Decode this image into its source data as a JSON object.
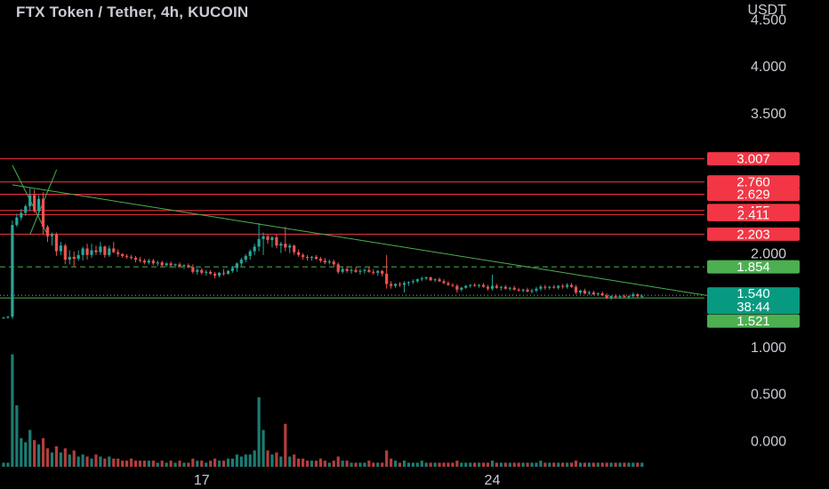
{
  "header": {
    "title": "FTX Token / Tether, 4h, KUCOIN",
    "currency": "USDT"
  },
  "colors": {
    "up": "#26a69a",
    "down": "#ef5350",
    "level_line": "#f23645",
    "trend_line": "#4caf50",
    "badge_red": "#f23645",
    "badge_green": "#4caf50",
    "badge_teal": "#089981",
    "background": "#000000"
  },
  "chart_data": {
    "type": "candlestick",
    "title": "FTX Token / Tether, 4h, KUCOIN",
    "ylabel": "USDT",
    "ylim": [
      -0.2,
      4.6
    ],
    "price_ticks": [
      "4.500",
      "4.000",
      "3.500",
      "2.000",
      "1.000"
    ],
    "volume_ticks": [
      "0.500",
      "0.000"
    ],
    "x_ticks": [
      {
        "label": "17",
        "bar": 45
      },
      {
        "label": "24",
        "bar": 111
      }
    ],
    "levels": [
      {
        "value": 3.007,
        "label": "3.007",
        "kind": "resistance"
      },
      {
        "value": 2.76,
        "label": "2.760",
        "kind": "resistance"
      },
      {
        "value": 2.629,
        "label": "2.629",
        "kind": "resistance"
      },
      {
        "value": 2.455,
        "label": "2.455",
        "kind": "resistance"
      },
      {
        "value": 2.411,
        "label": "2.411",
        "kind": "resistance"
      },
      {
        "value": 2.203,
        "label": "2.203",
        "kind": "resistance"
      }
    ],
    "dashed_level": {
      "value": 1.854,
      "label": "1.854"
    },
    "current_price": {
      "value": 1.54,
      "label": "1.540",
      "countdown": "38:44"
    },
    "last_level": {
      "value": 1.521,
      "label": "1.521"
    },
    "trendlines": [
      {
        "from": {
          "bar": 2,
          "price": 2.73
        },
        "to": {
          "bar": 158,
          "price": 1.54
        }
      },
      {
        "from": {
          "bar": 2,
          "price": 2.94
        },
        "to": {
          "bar": 6,
          "price": 2.2
        }
      },
      {
        "from": {
          "bar": 6,
          "price": 2.2
        },
        "to": {
          "bar": 8,
          "price": 2.9
        }
      }
    ],
    "candles": [
      [
        1.31,
        1.32,
        1.3,
        1.31,
        0.02
      ],
      [
        1.31,
        1.33,
        1.3,
        1.32,
        0.02
      ],
      [
        1.32,
        2.35,
        1.3,
        2.3,
        0.55
      ],
      [
        2.3,
        2.42,
        2.28,
        2.38,
        0.3
      ],
      [
        2.38,
        2.47,
        2.35,
        2.43,
        0.14
      ],
      [
        2.43,
        2.52,
        2.4,
        2.5,
        0.12
      ],
      [
        2.5,
        2.7,
        2.45,
        2.62,
        0.18
      ],
      [
        2.62,
        2.68,
        2.43,
        2.45,
        0.13
      ],
      [
        2.45,
        2.62,
        2.4,
        2.58,
        0.11
      ],
      [
        2.58,
        2.65,
        2.2,
        2.28,
        0.14
      ],
      [
        2.28,
        2.3,
        2.12,
        2.18,
        0.09
      ],
      [
        2.18,
        2.22,
        2.08,
        2.2,
        0.07
      ],
      [
        2.2,
        2.22,
        1.97,
        2.02,
        0.1
      ],
      [
        2.02,
        2.12,
        1.98,
        2.08,
        0.07
      ],
      [
        2.08,
        2.1,
        1.88,
        1.93,
        0.09
      ],
      [
        1.93,
        2.03,
        1.88,
        1.96,
        0.06
      ],
      [
        1.96,
        2.02,
        1.85,
        1.94,
        0.08
      ],
      [
        1.94,
        2.03,
        1.92,
        1.98,
        0.05
      ],
      [
        1.98,
        2.07,
        1.92,
        2.05,
        0.06
      ],
      [
        2.05,
        2.1,
        1.93,
        1.98,
        0.05
      ],
      [
        1.98,
        2.1,
        1.95,
        2.03,
        0.04
      ],
      [
        2.03,
        2.08,
        1.98,
        2.01,
        0.06
      ],
      [
        2.01,
        2.12,
        1.98,
        2.07,
        0.05
      ],
      [
        2.07,
        2.08,
        1.95,
        1.98,
        0.04
      ],
      [
        1.98,
        2.08,
        1.96,
        2.05,
        0.05
      ],
      [
        2.05,
        2.12,
        2.0,
        2.01,
        0.04
      ],
      [
        2.01,
        2.04,
        1.96,
        1.99,
        0.04
      ],
      [
        1.99,
        2.0,
        1.95,
        1.97,
        0.03
      ],
      [
        1.97,
        1.99,
        1.94,
        1.96,
        0.03
      ],
      [
        1.96,
        1.98,
        1.93,
        1.95,
        0.04
      ],
      [
        1.95,
        1.97,
        1.9,
        1.93,
        0.03
      ],
      [
        1.93,
        1.96,
        1.9,
        1.92,
        0.03
      ],
      [
        1.92,
        1.94,
        1.88,
        1.9,
        0.03
      ],
      [
        1.9,
        1.94,
        1.88,
        1.92,
        0.03
      ],
      [
        1.92,
        1.94,
        1.87,
        1.89,
        0.03
      ],
      [
        1.89,
        1.92,
        1.86,
        1.9,
        0.02
      ],
      [
        1.9,
        1.92,
        1.85,
        1.87,
        0.03
      ],
      [
        1.87,
        1.9,
        1.85,
        1.89,
        0.02
      ],
      [
        1.89,
        1.91,
        1.86,
        1.87,
        0.03
      ],
      [
        1.87,
        1.89,
        1.84,
        1.88,
        0.02
      ],
      [
        1.88,
        1.9,
        1.85,
        1.86,
        0.03
      ],
      [
        1.86,
        1.88,
        1.83,
        1.87,
        0.02
      ],
      [
        1.87,
        1.89,
        1.84,
        1.85,
        0.02
      ],
      [
        1.85,
        1.88,
        1.78,
        1.8,
        0.04
      ],
      [
        1.8,
        1.84,
        1.77,
        1.82,
        0.03
      ],
      [
        1.82,
        1.84,
        1.77,
        1.79,
        0.03
      ],
      [
        1.79,
        1.82,
        1.76,
        1.8,
        0.02
      ],
      [
        1.8,
        1.82,
        1.77,
        1.78,
        0.03
      ],
      [
        1.78,
        1.8,
        1.73,
        1.76,
        0.04
      ],
      [
        1.76,
        1.8,
        1.74,
        1.79,
        0.03
      ],
      [
        1.79,
        1.83,
        1.76,
        1.78,
        0.03
      ],
      [
        1.78,
        1.82,
        1.77,
        1.81,
        0.04
      ],
      [
        1.81,
        1.86,
        1.79,
        1.84,
        0.04
      ],
      [
        1.84,
        1.9,
        1.8,
        1.89,
        0.06
      ],
      [
        1.89,
        1.95,
        1.86,
        1.93,
        0.05
      ],
      [
        1.93,
        1.99,
        1.9,
        1.97,
        0.06
      ],
      [
        1.97,
        2.04,
        1.93,
        2.02,
        0.06
      ],
      [
        2.02,
        2.1,
        1.98,
        2.07,
        0.08
      ],
      [
        2.07,
        2.32,
        2.02,
        2.15,
        0.34
      ],
      [
        2.15,
        2.22,
        1.98,
        2.18,
        0.18
      ],
      [
        2.18,
        2.2,
        2.1,
        2.14,
        0.08
      ],
      [
        2.14,
        2.18,
        2.06,
        2.17,
        0.06
      ],
      [
        2.17,
        2.2,
        2.05,
        2.08,
        0.07
      ],
      [
        2.08,
        2.12,
        2.0,
        2.1,
        0.05
      ],
      [
        2.1,
        2.28,
        2.02,
        2.06,
        0.21
      ],
      [
        2.06,
        2.1,
        2.0,
        2.08,
        0.05
      ],
      [
        2.08,
        2.09,
        1.98,
        2.01,
        0.06
      ],
      [
        2.01,
        2.04,
        1.96,
        1.98,
        0.04
      ],
      [
        1.98,
        2.0,
        1.93,
        1.96,
        0.04
      ],
      [
        1.96,
        1.98,
        1.92,
        1.95,
        0.03
      ],
      [
        1.95,
        1.97,
        1.92,
        1.96,
        0.03
      ],
      [
        1.96,
        1.98,
        1.93,
        1.94,
        0.03
      ],
      [
        1.94,
        1.96,
        1.9,
        1.92,
        0.04
      ],
      [
        1.92,
        1.95,
        1.88,
        1.9,
        0.03
      ],
      [
        1.9,
        1.93,
        1.88,
        1.91,
        0.02
      ],
      [
        1.91,
        1.93,
        1.86,
        1.88,
        0.03
      ],
      [
        1.88,
        1.9,
        1.78,
        1.8,
        0.05
      ],
      [
        1.8,
        1.85,
        1.78,
        1.83,
        0.03
      ],
      [
        1.83,
        1.86,
        1.79,
        1.81,
        0.03
      ],
      [
        1.81,
        1.84,
        1.78,
        1.82,
        0.02
      ],
      [
        1.82,
        1.85,
        1.79,
        1.8,
        0.02
      ],
      [
        1.8,
        1.83,
        1.77,
        1.81,
        0.02
      ],
      [
        1.81,
        1.84,
        1.78,
        1.82,
        0.02
      ],
      [
        1.82,
        1.85,
        1.79,
        1.8,
        0.03
      ],
      [
        1.8,
        1.83,
        1.77,
        1.79,
        0.02
      ],
      [
        1.79,
        1.82,
        1.76,
        1.81,
        0.02
      ],
      [
        1.81,
        1.82,
        1.75,
        1.78,
        0.02
      ],
      [
        1.78,
        1.98,
        1.62,
        1.67,
        0.08
      ],
      [
        1.67,
        1.7,
        1.62,
        1.65,
        0.04
      ],
      [
        1.65,
        1.68,
        1.63,
        1.67,
        0.03
      ],
      [
        1.67,
        1.69,
        1.64,
        1.66,
        0.02
      ],
      [
        1.66,
        1.7,
        1.58,
        1.68,
        0.03
      ],
      [
        1.68,
        1.7,
        1.65,
        1.69,
        0.02
      ],
      [
        1.69,
        1.72,
        1.67,
        1.7,
        0.02
      ],
      [
        1.7,
        1.73,
        1.68,
        1.72,
        0.02
      ],
      [
        1.72,
        1.75,
        1.7,
        1.73,
        0.03
      ],
      [
        1.73,
        1.75,
        1.71,
        1.74,
        0.02
      ],
      [
        1.74,
        1.75,
        1.7,
        1.71,
        0.02
      ],
      [
        1.71,
        1.73,
        1.69,
        1.72,
        0.02
      ],
      [
        1.72,
        1.74,
        1.69,
        1.7,
        0.02
      ],
      [
        1.7,
        1.72,
        1.67,
        1.68,
        0.02
      ],
      [
        1.68,
        1.7,
        1.65,
        1.66,
        0.02
      ],
      [
        1.66,
        1.68,
        1.64,
        1.65,
        0.02
      ],
      [
        1.65,
        1.67,
        1.58,
        1.61,
        0.03
      ],
      [
        1.61,
        1.64,
        1.59,
        1.63,
        0.02
      ],
      [
        1.63,
        1.66,
        1.62,
        1.65,
        0.02
      ],
      [
        1.65,
        1.67,
        1.63,
        1.66,
        0.02
      ],
      [
        1.66,
        1.68,
        1.64,
        1.65,
        0.02
      ],
      [
        1.65,
        1.67,
        1.63,
        1.66,
        0.02
      ],
      [
        1.66,
        1.68,
        1.63,
        1.64,
        0.02
      ],
      [
        1.64,
        1.66,
        1.6,
        1.62,
        0.02
      ],
      [
        1.62,
        1.77,
        1.6,
        1.65,
        0.03
      ],
      [
        1.65,
        1.67,
        1.62,
        1.63,
        0.02
      ],
      [
        1.63,
        1.65,
        1.6,
        1.64,
        0.02
      ],
      [
        1.64,
        1.66,
        1.61,
        1.62,
        0.02
      ],
      [
        1.62,
        1.64,
        1.6,
        1.63,
        0.02
      ],
      [
        1.63,
        1.65,
        1.6,
        1.61,
        0.02
      ],
      [
        1.61,
        1.63,
        1.59,
        1.6,
        0.02
      ],
      [
        1.6,
        1.62,
        1.58,
        1.61,
        0.02
      ],
      [
        1.61,
        1.63,
        1.58,
        1.59,
        0.02
      ],
      [
        1.59,
        1.62,
        1.57,
        1.6,
        0.02
      ],
      [
        1.6,
        1.64,
        1.58,
        1.62,
        0.02
      ],
      [
        1.62,
        1.66,
        1.6,
        1.64,
        0.03
      ],
      [
        1.64,
        1.66,
        1.61,
        1.63,
        0.02
      ],
      [
        1.63,
        1.65,
        1.61,
        1.64,
        0.02
      ],
      [
        1.64,
        1.66,
        1.62,
        1.63,
        0.02
      ],
      [
        1.63,
        1.66,
        1.61,
        1.65,
        0.02
      ],
      [
        1.65,
        1.67,
        1.62,
        1.64,
        0.02
      ],
      [
        1.64,
        1.68,
        1.62,
        1.66,
        0.02
      ],
      [
        1.66,
        1.68,
        1.63,
        1.64,
        0.02
      ],
      [
        1.64,
        1.66,
        1.56,
        1.58,
        0.03
      ],
      [
        1.58,
        1.61,
        1.56,
        1.6,
        0.02
      ],
      [
        1.6,
        1.62,
        1.56,
        1.57,
        0.02
      ],
      [
        1.57,
        1.6,
        1.55,
        1.58,
        0.02
      ],
      [
        1.58,
        1.6,
        1.55,
        1.56,
        0.02
      ],
      [
        1.56,
        1.58,
        1.54,
        1.57,
        0.02
      ],
      [
        1.57,
        1.59,
        1.54,
        1.55,
        0.02
      ],
      [
        1.55,
        1.57,
        1.51,
        1.52,
        0.02
      ],
      [
        1.52,
        1.55,
        1.5,
        1.54,
        0.02
      ],
      [
        1.54,
        1.56,
        1.51,
        1.53,
        0.02
      ],
      [
        1.53,
        1.55,
        1.51,
        1.54,
        0.02
      ],
      [
        1.54,
        1.56,
        1.52,
        1.53,
        0.02
      ],
      [
        1.53,
        1.55,
        1.51,
        1.54,
        0.02
      ],
      [
        1.54,
        1.58,
        1.52,
        1.56,
        0.02
      ],
      [
        1.56,
        1.57,
        1.52,
        1.54,
        0.02
      ],
      [
        1.54,
        1.56,
        1.52,
        1.54,
        0.02
      ]
    ]
  }
}
